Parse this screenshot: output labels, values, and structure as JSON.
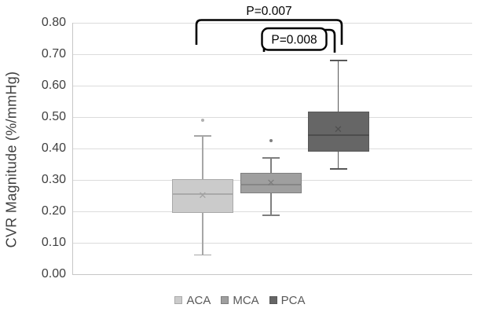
{
  "chart_data": {
    "type": "boxplot",
    "title": "",
    "xlabel": "",
    "ylabel": "CVR Magnitude (%/mmHg)",
    "ylim": [
      0.0,
      0.8
    ],
    "ytick_values": [
      0.8,
      0.7,
      0.6,
      0.5,
      0.4,
      0.3,
      0.2,
      0.1,
      0.0
    ],
    "ytick_labels": [
      "0.80",
      "0.70",
      "0.60",
      "0.50",
      "0.40",
      "0.30",
      "0.20",
      "0.10",
      "0.00"
    ],
    "grid": true,
    "categories": [
      "ACA",
      "MCA",
      "PCA"
    ],
    "series": [
      {
        "name": "ACA",
        "min": 0.06,
        "q1": 0.193,
        "median": 0.253,
        "q3": 0.302,
        "max": 0.44,
        "mean": 0.248,
        "outliers": [
          0.489
        ],
        "fill": "#cbcbcb",
        "border": "#a9a9a9",
        "median_color": "#a9a9a9",
        "whisker_color": "#a6a6a6",
        "mean_color": "#a2a2a2",
        "outlier_color": "#b0b0b0"
      },
      {
        "name": "MCA",
        "min": 0.187,
        "q1": 0.257,
        "median": 0.283,
        "q3": 0.321,
        "max": 0.369,
        "mean": 0.29,
        "outliers": [
          0.425
        ],
        "fill": "#9f9f9f",
        "border": "#7f7f7f",
        "median_color": "#868686",
        "whisker_color": "#7f7f7f",
        "mean_color": "#7c7c7c",
        "outlier_color": "#7f7f7f"
      },
      {
        "name": "PCA",
        "min": 0.334,
        "q1": 0.39,
        "median": 0.442,
        "q3": 0.518,
        "max": 0.68,
        "mean": 0.46,
        "outliers": [],
        "fill": "#666666",
        "border": "#585858",
        "median_color": "#4d4d4d",
        "whisker_color": "#585858",
        "mean_color": "#4f4f4f",
        "outlier_color": "#585858"
      }
    ],
    "annotations": [
      {
        "label": "P=0.007",
        "from": "ACA",
        "to": "PCA",
        "boxed": false
      },
      {
        "label": "P=0.008",
        "from": "MCA",
        "to": "PCA",
        "boxed": true
      }
    ],
    "legend": {
      "position": "bottom",
      "entries": [
        "ACA",
        "MCA",
        "PCA"
      ]
    },
    "colors": {
      "grid": "#dcdcdc",
      "axis": "#c6c6c6",
      "tick_text": "#404040",
      "legend_text": "#595959",
      "annotation": "#000000"
    }
  }
}
